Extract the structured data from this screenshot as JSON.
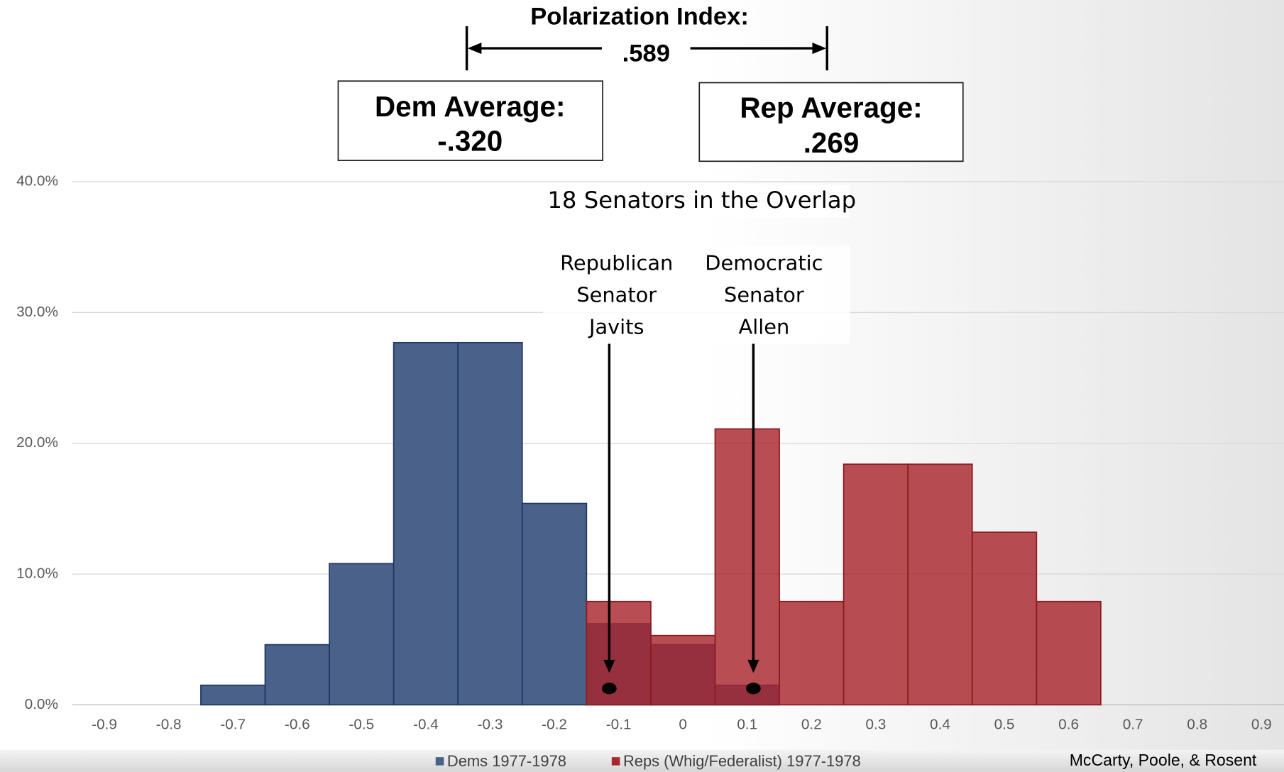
{
  "chart_data": {
    "type": "histogram",
    "annotations": {
      "polarization_label": "Polarization Index:",
      "polarization_value": ".589",
      "dem_label": "Dem Average:",
      "dem_value": "-.320",
      "rep_label": "Rep Average:",
      "rep_value": ".269",
      "overlap": "18 Senators in the Overlap",
      "javits": [
        "Republican",
        "Senator",
        "Javits"
      ],
      "allen": [
        "Democratic",
        "Senator",
        "Allen"
      ]
    },
    "series": [
      {
        "name": "Dems 1977-1978",
        "color": "#4a6189",
        "bins": [
          -0.75,
          -0.65,
          -0.55,
          -0.45,
          -0.35,
          -0.25,
          -0.15,
          -0.05,
          0.05,
          0.15
        ],
        "values": [
          1.5,
          4.6,
          10.8,
          27.7,
          27.7,
          15.4,
          6.2,
          4.6,
          1.5
        ]
      },
      {
        "name": "Reps (Whig/Federalist) 1977-1978",
        "color": "#a8262d",
        "bins": [
          -0.15,
          -0.05,
          0.05,
          0.15,
          0.25,
          0.35,
          0.45,
          0.55,
          0.65
        ],
        "values": [
          7.9,
          5.3,
          21.1,
          7.9,
          18.4,
          18.4,
          13.2,
          7.9
        ]
      }
    ],
    "xlim": [
      -0.95,
      0.935
    ],
    "xticks": [
      -0.9,
      -0.8,
      -0.7,
      -0.6,
      -0.5,
      -0.4,
      -0.3,
      -0.2,
      -0.1,
      0,
      0.1,
      0.2,
      0.3,
      0.4,
      0.5,
      0.6,
      0.7,
      0.8,
      0.9
    ],
    "ylim": [
      0,
      40
    ],
    "yticks": [
      {
        "value": 0,
        "label": "0.0%"
      },
      {
        "value": 10,
        "label": "10.0%"
      },
      {
        "value": 20,
        "label": "20.0%"
      },
      {
        "value": 30,
        "label": "30.0%"
      },
      {
        "value": 40,
        "label": "40.0%"
      }
    ],
    "grid": true,
    "source": "McCarty, Poole, & Rosent"
  }
}
